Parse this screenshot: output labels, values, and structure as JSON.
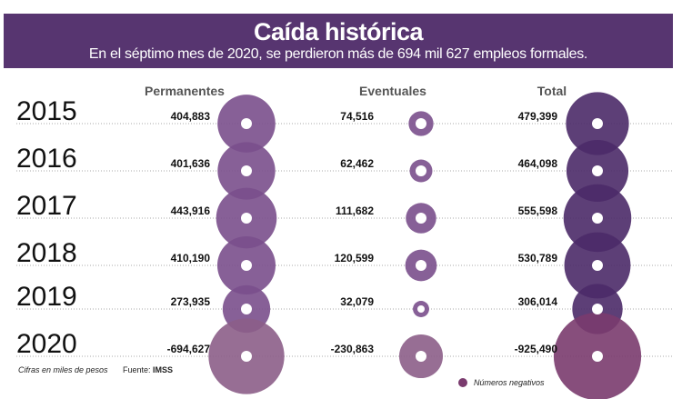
{
  "header": {
    "title": "Caída histórica",
    "subtitle": "En el séptimo mes de 2020, se perdieron más de 694 mil 627 empleos formales."
  },
  "chart_data": {
    "type": "bubble",
    "columns": [
      "Permanentes",
      "Eventuales",
      "Total"
    ],
    "categories": [
      "2015",
      "2016",
      "2017",
      "2018",
      "2019",
      "2020"
    ],
    "series": [
      {
        "name": "Permanentes",
        "values": [
          404883,
          401636,
          443916,
          410190,
          273935,
          -694627
        ],
        "labels": [
          "404,883",
          "401,636",
          "443,916",
          "410,190",
          "273,935",
          "-694,627"
        ]
      },
      {
        "name": "Eventuales",
        "values": [
          74516,
          62462,
          111682,
          120599,
          32079,
          -230863
        ],
        "labels": [
          "74,516",
          "62,462",
          "111,682",
          "120,599",
          "32,079",
          "-230,863"
        ]
      },
      {
        "name": "Total",
        "values": [
          479399,
          464098,
          555598,
          530789,
          306014,
          -925490
        ],
        "labels": [
          "479,399",
          "464,098",
          "555,598",
          "530,789",
          "306,014",
          "-925,490"
        ]
      }
    ],
    "colors": {
      "Permanentes": "#7a4f8c",
      "Eventuales": "#7a4f8c",
      "Total": "#4b2a68",
      "Permanentes_negative": "#8c5e88",
      "Eventuales_negative": "#8c5e88",
      "Total_negative": "#7a3b6e",
      "header": "#573570"
    },
    "legend": {
      "label": "Números negativos",
      "color": "#7a3b6e",
      "placement": "bottom-right"
    }
  },
  "footer": {
    "note": "Cifras en miles de pesos",
    "source_prefix": "Fuente: ",
    "source": "IMSS"
  }
}
